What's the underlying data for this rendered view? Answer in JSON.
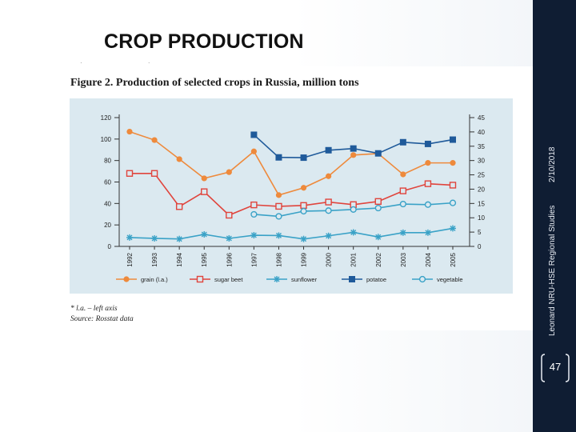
{
  "slide": {
    "title": "CROP PRODUCTION",
    "date": "2/10/2018",
    "org": "Leonard NRU-HSE Regional Studies",
    "page_number": "47"
  },
  "figure": {
    "caption": "Figure 2. Production of selected crops in Russia, million tons",
    "note": "* l.a. – left axis",
    "source": "Source: Rosstat data"
  },
  "colors": {
    "grain": "#ee8a3c",
    "sugar_beet": "#e0443c",
    "sunflower": "#3aa2c7",
    "potatoe": "#1f5a9a",
    "vegetable": "#3aa2c7",
    "sidebar": "#0f1d33",
    "panel": "#dbe9f0"
  },
  "chart_data": {
    "type": "line",
    "categories": [
      "1992",
      "1993",
      "1994",
      "1995",
      "1996",
      "1997",
      "1998",
      "1999",
      "2000",
      "2001",
      "2002",
      "2003",
      "2004",
      "2005"
    ],
    "y_left": {
      "ticks": [
        0,
        20,
        40,
        60,
        80,
        100,
        120
      ],
      "range": [
        0,
        120
      ]
    },
    "y_right": {
      "ticks": [
        0,
        5,
        10,
        15,
        20,
        25,
        30,
        35,
        40,
        45
      ],
      "range": [
        0,
        45
      ]
    },
    "grid": false,
    "legend_position": "bottom",
    "series": [
      {
        "name": "grain (l.a.)",
        "key": "grain",
        "axis": "left",
        "marker": "circle-filled",
        "values": [
          106.9,
          99.1,
          81.3,
          63.4,
          69.2,
          88.5,
          47.8,
          54.6,
          65.4,
          85.1,
          86.5,
          67.1,
          77.8,
          77.8
        ]
      },
      {
        "name": "sugar beet",
        "key": "sugar_beet",
        "axis": "right",
        "marker": "square-open",
        "values": [
          25.5,
          25.5,
          13.9,
          19.1,
          10.9,
          14.5,
          14.0,
          14.3,
          15.5,
          14.6,
          15.7,
          19.4,
          21.9,
          21.4
        ]
      },
      {
        "name": "sunflower",
        "key": "sunflower",
        "axis": "right",
        "marker": "asterisk",
        "values": [
          3.1,
          2.8,
          2.6,
          4.2,
          2.8,
          3.9,
          3.8,
          2.6,
          3.7,
          4.9,
          3.3,
          4.8,
          4.8,
          6.3
        ]
      },
      {
        "name": "potatoe",
        "key": "potatoe",
        "axis": "right",
        "marker": "square-filled",
        "values": [
          null,
          null,
          null,
          null,
          null,
          39.0,
          31.1,
          31.0,
          33.6,
          34.2,
          32.5,
          36.4,
          35.8,
          37.3
        ]
      },
      {
        "name": "vegetable",
        "key": "vegetable",
        "axis": "right",
        "marker": "circle-open",
        "values": [
          null,
          null,
          null,
          null,
          null,
          11.2,
          10.5,
          12.3,
          12.5,
          12.9,
          13.4,
          14.8,
          14.6,
          15.2
        ]
      }
    ]
  }
}
